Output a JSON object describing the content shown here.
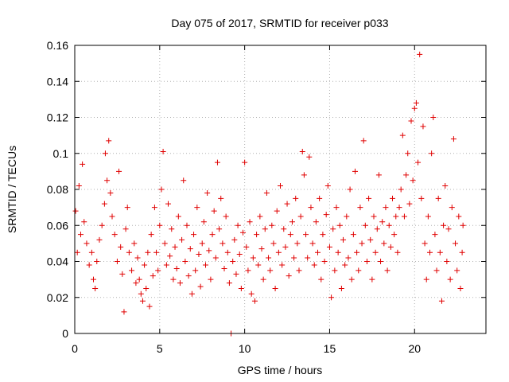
{
  "chart_data": {
    "type": "scatter",
    "title": "Day 075 of 2017, SRMTID for receiver p033",
    "xlabel": "GPS time / hours",
    "ylabel": "SRMTID / TECUs",
    "xlim": [
      0,
      24.2
    ],
    "ylim": [
      0,
      0.16
    ],
    "x_ticks": [
      0,
      5,
      10,
      15,
      20
    ],
    "y_ticks": [
      0,
      0.02,
      0.04,
      0.06,
      0.08,
      0.1,
      0.12,
      0.14,
      0.16
    ],
    "x_tick_labels": [
      "0",
      "5",
      "10",
      "15",
      "20"
    ],
    "y_tick_labels": [
      "0",
      "0.02",
      "0.04",
      "0.06",
      "0.08",
      "0.1",
      "0.12",
      "0.14",
      "0.16"
    ],
    "grid": true,
    "marker": "plus",
    "series_color": "#e00000",
    "series": [
      {
        "name": "SRMTID",
        "points": [
          [
            0.05,
            0.068
          ],
          [
            0.15,
            0.045
          ],
          [
            0.25,
            0.082
          ],
          [
            0.35,
            0.055
          ],
          [
            0.45,
            0.094
          ],
          [
            0.55,
            0.062
          ],
          [
            0.7,
            0.05
          ],
          [
            0.85,
            0.038
          ],
          [
            1.0,
            0.045
          ],
          [
            1.1,
            0.03
          ],
          [
            1.2,
            0.025
          ],
          [
            1.3,
            0.04
          ],
          [
            1.45,
            0.052
          ],
          [
            1.6,
            0.06
          ],
          [
            1.75,
            0.072
          ],
          [
            1.8,
            0.1
          ],
          [
            1.9,
            0.085
          ],
          [
            2.0,
            0.107
          ],
          [
            2.1,
            0.078
          ],
          [
            2.2,
            0.065
          ],
          [
            2.35,
            0.055
          ],
          [
            2.5,
            0.04
          ],
          [
            2.6,
            0.09
          ],
          [
            2.7,
            0.048
          ],
          [
            2.8,
            0.033
          ],
          [
            2.9,
            0.012
          ],
          [
            3.0,
            0.058
          ],
          [
            3.1,
            0.07
          ],
          [
            3.2,
            0.045
          ],
          [
            3.35,
            0.035
          ],
          [
            3.5,
            0.05
          ],
          [
            3.6,
            0.028
          ],
          [
            3.7,
            0.042
          ],
          [
            3.8,
            0.03
          ],
          [
            3.9,
            0.022
          ],
          [
            4.0,
            0.018
          ],
          [
            4.1,
            0.038
          ],
          [
            4.2,
            0.025
          ],
          [
            4.3,
            0.045
          ],
          [
            4.4,
            0.015
          ],
          [
            4.5,
            0.055
          ],
          [
            4.6,
            0.032
          ],
          [
            4.7,
            0.07
          ],
          [
            4.8,
            0.045
          ],
          [
            4.9,
            0.035
          ],
          [
            5.0,
            0.06
          ],
          [
            5.1,
            0.08
          ],
          [
            5.2,
            0.101
          ],
          [
            5.3,
            0.05
          ],
          [
            5.4,
            0.038
          ],
          [
            5.5,
            0.072
          ],
          [
            5.6,
            0.043
          ],
          [
            5.7,
            0.058
          ],
          [
            5.8,
            0.03
          ],
          [
            5.9,
            0.048
          ],
          [
            6.0,
            0.036
          ],
          [
            6.1,
            0.065
          ],
          [
            6.2,
            0.028
          ],
          [
            6.3,
            0.052
          ],
          [
            6.4,
            0.085
          ],
          [
            6.5,
            0.04
          ],
          [
            6.6,
            0.06
          ],
          [
            6.7,
            0.032
          ],
          [
            6.8,
            0.047
          ],
          [
            6.9,
            0.022
          ],
          [
            7.0,
            0.055
          ],
          [
            7.1,
            0.035
          ],
          [
            7.2,
            0.07
          ],
          [
            7.3,
            0.044
          ],
          [
            7.4,
            0.026
          ],
          [
            7.5,
            0.05
          ],
          [
            7.6,
            0.062
          ],
          [
            7.7,
            0.038
          ],
          [
            7.8,
            0.078
          ],
          [
            7.9,
            0.046
          ],
          [
            8.0,
            0.03
          ],
          [
            8.1,
            0.055
          ],
          [
            8.2,
            0.068
          ],
          [
            8.3,
            0.042
          ],
          [
            8.4,
            0.095
          ],
          [
            8.5,
            0.058
          ],
          [
            8.6,
            0.075
          ],
          [
            8.7,
            0.05
          ],
          [
            8.8,
            0.036
          ],
          [
            8.9,
            0.065
          ],
          [
            9.0,
            0.045
          ],
          [
            9.1,
            0.028
          ],
          [
            9.2,
            0.0
          ],
          [
            9.3,
            0.04
          ],
          [
            9.4,
            0.052
          ],
          [
            9.5,
            0.033
          ],
          [
            9.6,
            0.06
          ],
          [
            9.7,
            0.044
          ],
          [
            9.8,
            0.025
          ],
          [
            9.9,
            0.056
          ],
          [
            10.0,
            0.095
          ],
          [
            10.1,
            0.048
          ],
          [
            10.2,
            0.035
          ],
          [
            10.3,
            0.062
          ],
          [
            10.4,
            0.022
          ],
          [
            10.5,
            0.042
          ],
          [
            10.6,
            0.018
          ],
          [
            10.7,
            0.055
          ],
          [
            10.8,
            0.038
          ],
          [
            10.9,
            0.065
          ],
          [
            11.0,
            0.047
          ],
          [
            11.1,
            0.03
          ],
          [
            11.2,
            0.058
          ],
          [
            11.3,
            0.078
          ],
          [
            11.4,
            0.042
          ],
          [
            11.5,
            0.035
          ],
          [
            11.6,
            0.06
          ],
          [
            11.7,
            0.05
          ],
          [
            11.8,
            0.025
          ],
          [
            11.9,
            0.068
          ],
          [
            12.0,
            0.045
          ],
          [
            12.1,
            0.082
          ],
          [
            12.2,
            0.038
          ],
          [
            12.3,
            0.058
          ],
          [
            12.4,
            0.048
          ],
          [
            12.5,
            0.072
          ],
          [
            12.6,
            0.032
          ],
          [
            12.7,
            0.055
          ],
          [
            12.8,
            0.062
          ],
          [
            12.9,
            0.042
          ],
          [
            13.0,
            0.075
          ],
          [
            13.1,
            0.05
          ],
          [
            13.2,
            0.035
          ],
          [
            13.3,
            0.065
          ],
          [
            13.4,
            0.101
          ],
          [
            13.5,
            0.088
          ],
          [
            13.6,
            0.055
          ],
          [
            13.7,
            0.042
          ],
          [
            13.8,
            0.098
          ],
          [
            13.9,
            0.07
          ],
          [
            14.0,
            0.05
          ],
          [
            14.1,
            0.038
          ],
          [
            14.2,
            0.062
          ],
          [
            14.3,
            0.045
          ],
          [
            14.4,
            0.075
          ],
          [
            14.5,
            0.03
          ],
          [
            14.6,
            0.055
          ],
          [
            14.7,
            0.04
          ],
          [
            14.8,
            0.066
          ],
          [
            14.9,
            0.082
          ],
          [
            15.0,
            0.048
          ],
          [
            15.1,
            0.02
          ],
          [
            15.2,
            0.058
          ],
          [
            15.3,
            0.035
          ],
          [
            15.4,
            0.07
          ],
          [
            15.5,
            0.045
          ],
          [
            15.6,
            0.06
          ],
          [
            15.7,
            0.025
          ],
          [
            15.8,
            0.052
          ],
          [
            15.9,
            0.038
          ],
          [
            16.0,
            0.065
          ],
          [
            16.1,
            0.042
          ],
          [
            16.2,
            0.08
          ],
          [
            16.3,
            0.03
          ],
          [
            16.4,
            0.055
          ],
          [
            16.5,
            0.09
          ],
          [
            16.6,
            0.045
          ],
          [
            16.7,
            0.035
          ],
          [
            16.8,
            0.07
          ],
          [
            16.9,
            0.05
          ],
          [
            17.0,
            0.107
          ],
          [
            17.1,
            0.06
          ],
          [
            17.2,
            0.04
          ],
          [
            17.3,
            0.075
          ],
          [
            17.4,
            0.052
          ],
          [
            17.5,
            0.03
          ],
          [
            17.6,
            0.065
          ],
          [
            17.7,
            0.045
          ],
          [
            17.8,
            0.058
          ],
          [
            17.9,
            0.088
          ],
          [
            18.0,
            0.04
          ],
          [
            18.1,
            0.062
          ],
          [
            18.2,
            0.05
          ],
          [
            18.3,
            0.07
          ],
          [
            18.4,
            0.035
          ],
          [
            18.5,
            0.06
          ],
          [
            18.6,
            0.048
          ],
          [
            18.7,
            0.075
          ],
          [
            18.8,
            0.055
          ],
          [
            18.9,
            0.065
          ],
          [
            19.0,
            0.045
          ],
          [
            19.1,
            0.07
          ],
          [
            19.2,
            0.08
          ],
          [
            19.3,
            0.11
          ],
          [
            19.4,
            0.065
          ],
          [
            19.5,
            0.088
          ],
          [
            19.6,
            0.1
          ],
          [
            19.7,
            0.072
          ],
          [
            19.8,
            0.118
          ],
          [
            19.9,
            0.085
          ],
          [
            20.0,
            0.125
          ],
          [
            20.1,
            0.128
          ],
          [
            20.2,
            0.095
          ],
          [
            20.3,
            0.155
          ],
          [
            20.4,
            0.075
          ],
          [
            20.5,
            0.115
          ],
          [
            20.6,
            0.05
          ],
          [
            20.7,
            0.03
          ],
          [
            20.8,
            0.065
          ],
          [
            20.9,
            0.045
          ],
          [
            21.0,
            0.1
          ],
          [
            21.1,
            0.12
          ],
          [
            21.2,
            0.055
          ],
          [
            21.3,
            0.035
          ],
          [
            21.4,
            0.075
          ],
          [
            21.5,
            0.045
          ],
          [
            21.6,
            0.018
          ],
          [
            21.7,
            0.06
          ],
          [
            21.8,
            0.082
          ],
          [
            21.9,
            0.04
          ],
          [
            22.0,
            0.058
          ],
          [
            22.1,
            0.03
          ],
          [
            22.2,
            0.07
          ],
          [
            22.3,
            0.108
          ],
          [
            22.4,
            0.05
          ],
          [
            22.5,
            0.035
          ],
          [
            22.6,
            0.065
          ],
          [
            22.7,
            0.025
          ],
          [
            22.8,
            0.045
          ],
          [
            22.85,
            0.06
          ]
        ]
      }
    ]
  }
}
